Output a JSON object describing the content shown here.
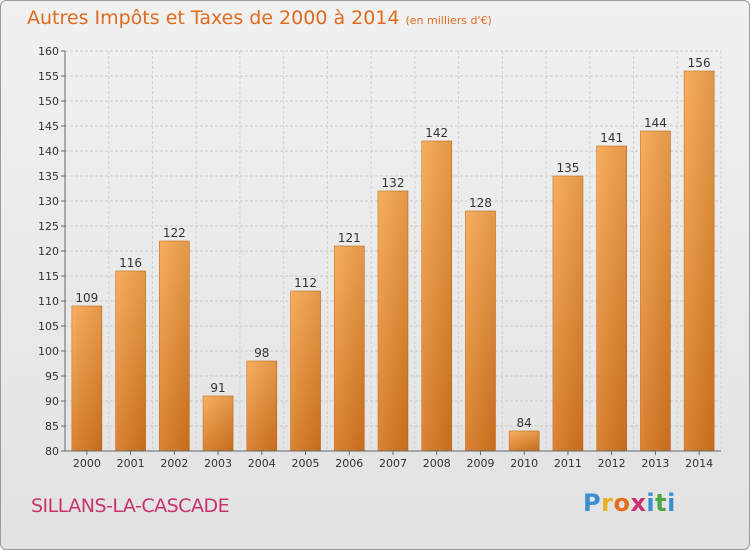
{
  "title": "Autres Impôts et Taxes de 2000 à 2014",
  "unit": "(en milliers d'€)",
  "commune": "SILLANS-LA-CASCADE",
  "brand": {
    "letters": [
      "P",
      "r",
      "o",
      "x",
      "i",
      "t",
      "i"
    ],
    "colors": [
      "#3a8fd0",
      "#e8b020",
      "#e46d1e",
      "#c8326e",
      "#3a8fd0",
      "#48a843",
      "#3a8fd0"
    ]
  },
  "colors": {
    "bar_light": "#f7a64f",
    "bar_dark": "#d6761f",
    "title": "#e06a1e",
    "commune": "#c8326e"
  },
  "chart_data": {
    "type": "bar",
    "categories": [
      "2000",
      "2001",
      "2002",
      "2003",
      "2004",
      "2005",
      "2006",
      "2007",
      "2008",
      "2009",
      "2010",
      "2011",
      "2012",
      "2013",
      "2014"
    ],
    "values": [
      109,
      116,
      122,
      91,
      98,
      112,
      121,
      132,
      142,
      128,
      84,
      135,
      141,
      144,
      156
    ],
    "ylim": [
      80,
      160
    ],
    "yticks": [
      80,
      85,
      90,
      95,
      100,
      105,
      110,
      115,
      120,
      125,
      130,
      135,
      140,
      145,
      150,
      155,
      160
    ],
    "grid": true,
    "xlabel": "",
    "ylabel": ""
  }
}
